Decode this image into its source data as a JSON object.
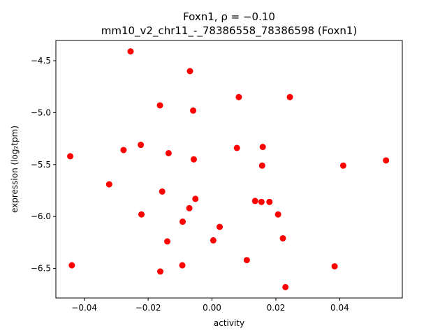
{
  "chart_data": {
    "type": "scatter",
    "title_line1": "Foxn1, ρ = −0.10",
    "title_line2": "mm10_v2_chr11_-_78386558_78386598 (Foxn1)",
    "xlabel": "activity",
    "ylabel": "expression (log₂tpm)",
    "xlim": [
      -0.0489,
      0.0596
    ],
    "ylim": [
      -6.785,
      -4.305
    ],
    "x_ticks": [
      -0.04,
      -0.02,
      0.0,
      0.02,
      0.04
    ],
    "x_tick_labels": [
      "−0.04",
      "−0.02",
      "0.00",
      "0.02",
      "0.04"
    ],
    "y_ticks": [
      -6.5,
      -6.0,
      -5.5,
      -5.0,
      -4.5
    ],
    "y_tick_labels": [
      "−6.5",
      "−6.0",
      "−5.5",
      "−5.0",
      "−4.5"
    ],
    "grid": false,
    "marker_color": "#ff0000",
    "points": [
      {
        "x": -0.0444,
        "y": -5.42
      },
      {
        "x": -0.0439,
        "y": -6.47
      },
      {
        "x": -0.0322,
        "y": -5.69
      },
      {
        "x": -0.0277,
        "y": -5.36
      },
      {
        "x": -0.0255,
        "y": -4.41
      },
      {
        "x": -0.0223,
        "y": -5.31
      },
      {
        "x": -0.0221,
        "y": -5.98
      },
      {
        "x": -0.0163,
        "y": -4.93
      },
      {
        "x": -0.0162,
        "y": -6.53
      },
      {
        "x": -0.0156,
        "y": -5.76
      },
      {
        "x": -0.014,
        "y": -6.24
      },
      {
        "x": -0.0136,
        "y": -5.39
      },
      {
        "x": -0.0093,
        "y": -6.47
      },
      {
        "x": -0.0092,
        "y": -6.05
      },
      {
        "x": -0.0071,
        "y": -5.92
      },
      {
        "x": -0.0069,
        "y": -4.6
      },
      {
        "x": -0.0059,
        "y": -4.98
      },
      {
        "x": -0.0057,
        "y": -5.45
      },
      {
        "x": -0.0052,
        "y": -5.83
      },
      {
        "x": 0.0004,
        "y": -6.23
      },
      {
        "x": 0.0024,
        "y": -6.1
      },
      {
        "x": 0.0078,
        "y": -5.34
      },
      {
        "x": 0.0084,
        "y": -4.85
      },
      {
        "x": 0.0109,
        "y": -6.42
      },
      {
        "x": 0.0135,
        "y": -5.85
      },
      {
        "x": 0.0155,
        "y": -5.86
      },
      {
        "x": 0.0157,
        "y": -5.51
      },
      {
        "x": 0.0159,
        "y": -5.33
      },
      {
        "x": 0.018,
        "y": -5.86
      },
      {
        "x": 0.0207,
        "y": -5.98
      },
      {
        "x": 0.0222,
        "y": -6.21
      },
      {
        "x": 0.023,
        "y": -6.68
      },
      {
        "x": 0.0244,
        "y": -4.85
      },
      {
        "x": 0.0384,
        "y": -6.48
      },
      {
        "x": 0.0411,
        "y": -5.51
      },
      {
        "x": 0.0545,
        "y": -5.46
      }
    ]
  }
}
